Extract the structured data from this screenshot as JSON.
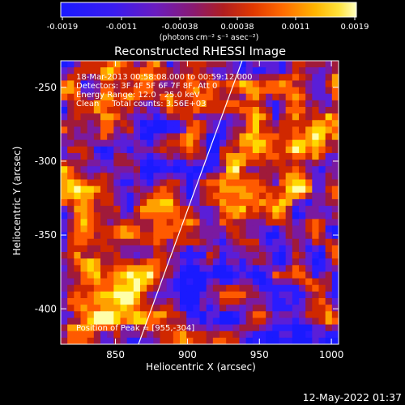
{
  "colorbar": {
    "ticks": [
      "-0.0019",
      "-0.0011",
      "-0.00038",
      "0.00038",
      "0.0011",
      "0.0019"
    ],
    "units": "(photons cm⁻² s⁻¹ asec⁻²)",
    "colors": [
      "#1a1aff",
      "#2a1cff",
      "#5a1ed8",
      "#7a1aa0",
      "#a01a3a",
      "#d02800",
      "#ff5a00",
      "#ffa000",
      "#ffd800",
      "#ffffa8"
    ]
  },
  "annotations": {
    "line1": "18-Mar-2013 00:58:08.000 to 00:59:12.000",
    "line2": "Detectors: 3F 4F 5F 6F 7F 8F, Att 0",
    "line3": "Energy Range: 12.0 - 25.0 keV",
    "line4": "Clean     Total counts: 3.56E+03",
    "peak": "Position of Peak = [955,-304]"
  },
  "timestamp": "12-May-2022 01:37",
  "chart_data": {
    "type": "heatmap",
    "title": "Reconstructed RHESSI Image",
    "xlabel": "Heliocentric X (arcsec)",
    "ylabel": "Heliocentric Y (arcsec)",
    "xlim": [
      812,
      1005
    ],
    "ylim": [
      -424,
      -232
    ],
    "xticks": [
      850,
      900,
      950,
      1000
    ],
    "yticks": [
      -250,
      -300,
      -350,
      -400
    ],
    "limb_line": {
      "x": [
        866,
        938
      ],
      "y": [
        -424,
        -232
      ],
      "color": "#ffffff"
    },
    "peak": {
      "x": 955,
      "y": -304
    },
    "color_range": [
      -0.0019,
      0.0019
    ]
  }
}
